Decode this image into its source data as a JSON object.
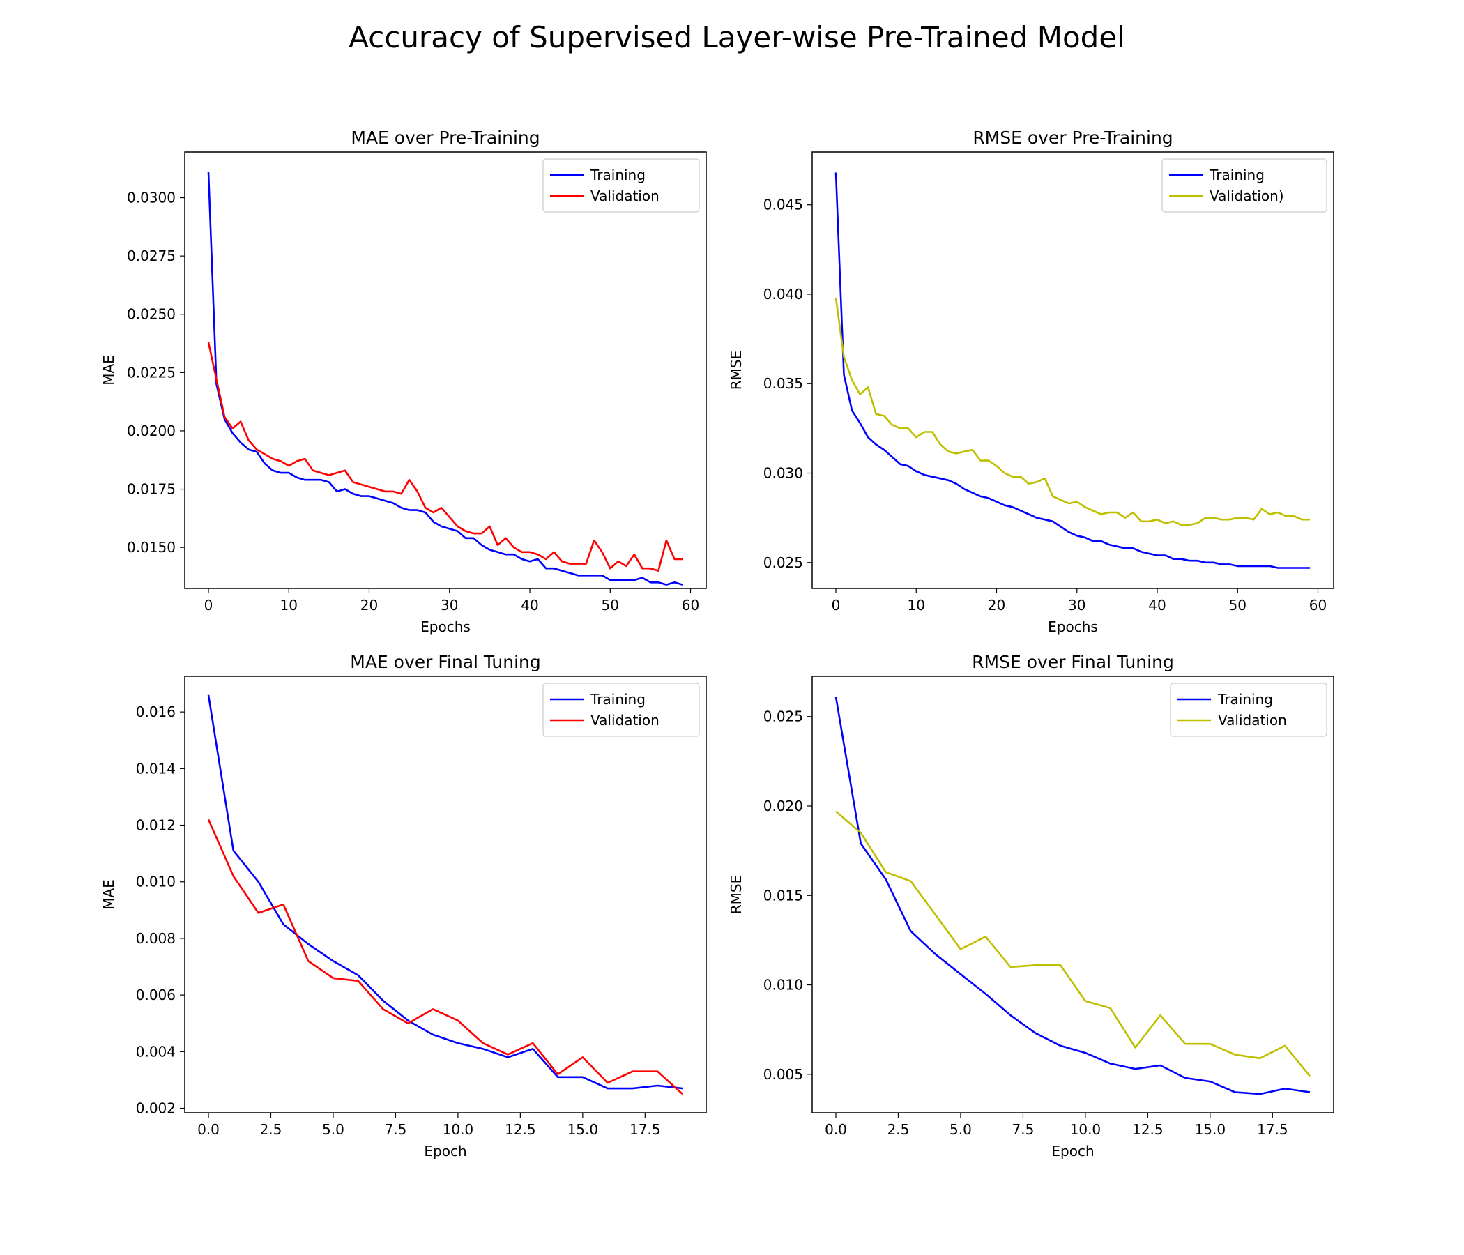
{
  "figure": {
    "title": "Accuracy of Supervised Layer-wise Pre-Trained Model"
  },
  "chart_data": [
    {
      "type": "line",
      "title": "MAE over Pre-Training",
      "xlabel": "Epochs",
      "ylabel": "MAE",
      "xlim": [
        -2.95,
        61.95
      ],
      "ylim": [
        0.01324,
        0.03196
      ],
      "xticks": [
        0,
        10,
        20,
        30,
        40,
        50,
        60
      ],
      "xtick_labels": [
        "0",
        "10",
        "20",
        "30",
        "40",
        "50",
        "60"
      ],
      "yticks": [
        0.015,
        0.0175,
        0.02,
        0.0225,
        0.025,
        0.0275,
        0.03
      ],
      "ytick_labels": [
        "0.0150",
        "0.0175",
        "0.0200",
        "0.0225",
        "0.0250",
        "0.0275",
        "0.0300"
      ],
      "legend_position": "top-right",
      "x": [
        0,
        1,
        2,
        3,
        4,
        5,
        6,
        7,
        8,
        9,
        10,
        11,
        12,
        13,
        14,
        15,
        16,
        17,
        18,
        19,
        20,
        21,
        22,
        23,
        24,
        25,
        26,
        27,
        28,
        29,
        30,
        31,
        32,
        33,
        34,
        35,
        36,
        37,
        38,
        39,
        40,
        41,
        42,
        43,
        44,
        45,
        46,
        47,
        48,
        49,
        50,
        51,
        52,
        53,
        54,
        55,
        56,
        57,
        58,
        59
      ],
      "series": [
        {
          "name": "Training",
          "color": "#0000ff",
          "values": [
            0.0311,
            0.022,
            0.0205,
            0.0199,
            0.0195,
            0.0192,
            0.0191,
            0.0186,
            0.0183,
            0.0182,
            0.0182,
            0.018,
            0.0179,
            0.0179,
            0.0179,
            0.0178,
            0.0174,
            0.0175,
            0.0173,
            0.0172,
            0.0172,
            0.0171,
            0.017,
            0.0169,
            0.0167,
            0.0166,
            0.0166,
            0.0165,
            0.0161,
            0.0159,
            0.0158,
            0.0157,
            0.0154,
            0.0154,
            0.0151,
            0.0149,
            0.0148,
            0.0147,
            0.0147,
            0.0145,
            0.0144,
            0.0145,
            0.0141,
            0.0141,
            0.014,
            0.0139,
            0.0138,
            0.0138,
            0.0138,
            0.0138,
            0.0136,
            0.0136,
            0.0136,
            0.0136,
            0.0137,
            0.0135,
            0.0135,
            0.0134,
            0.0135,
            0.0134
          ]
        },
        {
          "name": "Validation",
          "color": "#ff0000",
          "values": [
            0.0238,
            0.0222,
            0.0206,
            0.0201,
            0.0204,
            0.0196,
            0.0192,
            0.019,
            0.0188,
            0.0187,
            0.0185,
            0.0187,
            0.0188,
            0.0183,
            0.0182,
            0.0181,
            0.0182,
            0.0183,
            0.0178,
            0.0177,
            0.0176,
            0.0175,
            0.0174,
            0.0174,
            0.0173,
            0.0179,
            0.0174,
            0.0167,
            0.0165,
            0.0167,
            0.0163,
            0.0159,
            0.0157,
            0.0156,
            0.0156,
            0.0159,
            0.0151,
            0.0154,
            0.015,
            0.0148,
            0.0148,
            0.0147,
            0.0145,
            0.0148,
            0.0144,
            0.0143,
            0.0143,
            0.0143,
            0.0153,
            0.0148,
            0.0141,
            0.0144,
            0.0142,
            0.0147,
            0.0141,
            0.0141,
            0.014,
            0.0153,
            0.0145,
            0.0145
          ]
        }
      ]
    },
    {
      "type": "line",
      "title": "RMSE over Pre-Training",
      "xlabel": "Epochs",
      "ylabel": "RMSE",
      "xlim": [
        -2.95,
        61.95
      ],
      "ylim": [
        0.02355,
        0.04795
      ],
      "xticks": [
        0,
        10,
        20,
        30,
        40,
        50,
        60
      ],
      "xtick_labels": [
        "0",
        "10",
        "20",
        "30",
        "40",
        "50",
        "60"
      ],
      "yticks": [
        0.025,
        0.03,
        0.035,
        0.04,
        0.045
      ],
      "ytick_labels": [
        "0.025",
        "0.030",
        "0.035",
        "0.040",
        "0.045"
      ],
      "legend_position": "top-right",
      "x": [
        0,
        1,
        2,
        3,
        4,
        5,
        6,
        7,
        8,
        9,
        10,
        11,
        12,
        13,
        14,
        15,
        16,
        17,
        18,
        19,
        20,
        21,
        22,
        23,
        24,
        25,
        26,
        27,
        28,
        29,
        30,
        31,
        32,
        33,
        34,
        35,
        36,
        37,
        38,
        39,
        40,
        41,
        42,
        43,
        44,
        45,
        46,
        47,
        48,
        49,
        50,
        51,
        52,
        53,
        54,
        55,
        56,
        57,
        58,
        59
      ],
      "series": [
        {
          "name": "Training",
          "color": "#0000ff",
          "values": [
            0.0468,
            0.0355,
            0.0335,
            0.0328,
            0.032,
            0.0316,
            0.0313,
            0.0309,
            0.0305,
            0.0304,
            0.0301,
            0.0299,
            0.0298,
            0.0297,
            0.0296,
            0.0294,
            0.0291,
            0.0289,
            0.0287,
            0.0286,
            0.0284,
            0.0282,
            0.0281,
            0.0279,
            0.0277,
            0.0275,
            0.0274,
            0.0273,
            0.027,
            0.0267,
            0.0265,
            0.0264,
            0.0262,
            0.0262,
            0.026,
            0.0259,
            0.0258,
            0.0258,
            0.0256,
            0.0255,
            0.0254,
            0.0254,
            0.0252,
            0.0252,
            0.0251,
            0.0251,
            0.025,
            0.025,
            0.0249,
            0.0249,
            0.0248,
            0.0248,
            0.0248,
            0.0248,
            0.0248,
            0.0247,
            0.0247,
            0.0247,
            0.0247,
            0.0247
          ]
        },
        {
          "name": "Validation)",
          "color": "#bfbf00",
          "values": [
            0.0398,
            0.0365,
            0.0352,
            0.0344,
            0.0348,
            0.0333,
            0.0332,
            0.0327,
            0.0325,
            0.0325,
            0.032,
            0.0323,
            0.0323,
            0.0316,
            0.0312,
            0.0311,
            0.0312,
            0.0313,
            0.0307,
            0.0307,
            0.0304,
            0.03,
            0.0298,
            0.0298,
            0.0294,
            0.0295,
            0.0297,
            0.0287,
            0.0285,
            0.0283,
            0.0284,
            0.0281,
            0.0279,
            0.0277,
            0.0278,
            0.0278,
            0.0275,
            0.0278,
            0.0273,
            0.0273,
            0.0274,
            0.0272,
            0.0273,
            0.0271,
            0.0271,
            0.0272,
            0.0275,
            0.0275,
            0.0274,
            0.0274,
            0.0275,
            0.0275,
            0.0274,
            0.028,
            0.0277,
            0.0278,
            0.0276,
            0.0276,
            0.0274,
            0.0274
          ]
        }
      ]
    },
    {
      "type": "line",
      "title": "MAE over Final Tuning",
      "xlabel": "Epoch",
      "ylabel": "MAE",
      "xlim": [
        -0.95,
        19.95
      ],
      "ylim": [
        0.00184,
        0.01726
      ],
      "xticks": [
        0,
        2.5,
        5,
        7.5,
        10,
        12.5,
        15,
        17.5
      ],
      "xtick_labels": [
        "0.0",
        "2.5",
        "5.0",
        "7.5",
        "10.0",
        "12.5",
        "15.0",
        "17.5"
      ],
      "yticks": [
        0.002,
        0.004,
        0.006,
        0.008,
        0.01,
        0.012,
        0.014,
        0.016
      ],
      "ytick_labels": [
        "0.002",
        "0.004",
        "0.006",
        "0.008",
        "0.010",
        "0.012",
        "0.014",
        "0.016"
      ],
      "legend_position": "top-right",
      "x": [
        0,
        1,
        2,
        3,
        4,
        5,
        6,
        7,
        8,
        9,
        10,
        11,
        12,
        13,
        14,
        15,
        16,
        17,
        18,
        19
      ],
      "series": [
        {
          "name": "Training",
          "color": "#0000ff",
          "values": [
            0.0166,
            0.0111,
            0.01,
            0.0085,
            0.0078,
            0.0072,
            0.0067,
            0.0058,
            0.0051,
            0.0046,
            0.0043,
            0.0041,
            0.0038,
            0.0041,
            0.0031,
            0.0031,
            0.0027,
            0.0027,
            0.0028,
            0.0027
          ]
        },
        {
          "name": "Validation",
          "color": "#ff0000",
          "values": [
            0.0122,
            0.0102,
            0.0089,
            0.0092,
            0.0072,
            0.0066,
            0.0065,
            0.0055,
            0.005,
            0.0055,
            0.0051,
            0.0043,
            0.0039,
            0.0043,
            0.0032,
            0.0038,
            0.0029,
            0.0033,
            0.0033,
            0.0025
          ]
        }
      ]
    },
    {
      "type": "line",
      "title": "RMSE over Final Tuning",
      "xlabel": "Epoch",
      "ylabel": "RMSE",
      "xlim": [
        -0.95,
        19.95
      ],
      "ylim": [
        0.00285,
        0.02725
      ],
      "xticks": [
        0,
        2.5,
        5,
        7.5,
        10,
        12.5,
        15,
        17.5
      ],
      "xtick_labels": [
        "0.0",
        "2.5",
        "5.0",
        "7.5",
        "10.0",
        "12.5",
        "15.0",
        "17.5"
      ],
      "yticks": [
        0.005,
        0.01,
        0.015,
        0.02,
        0.025
      ],
      "ytick_labels": [
        "0.005",
        "0.010",
        "0.015",
        "0.020",
        "0.025"
      ],
      "legend_position": "top-right",
      "x": [
        0,
        1,
        2,
        3,
        4,
        5,
        6,
        7,
        8,
        9,
        10,
        11,
        12,
        13,
        14,
        15,
        16,
        17,
        18,
        19
      ],
      "series": [
        {
          "name": "Training",
          "color": "#0000ff",
          "values": [
            0.0261,
            0.0179,
            0.0159,
            0.013,
            0.0117,
            0.0106,
            0.0095,
            0.0083,
            0.0073,
            0.0066,
            0.0062,
            0.0056,
            0.0053,
            0.0055,
            0.0048,
            0.0046,
            0.004,
            0.0039,
            0.0042,
            0.004
          ]
        },
        {
          "name": "Validation",
          "color": "#bfbf00",
          "values": [
            0.0197,
            0.0185,
            0.0163,
            0.0158,
            0.0139,
            0.012,
            0.0127,
            0.011,
            0.0111,
            0.0111,
            0.0091,
            0.0087,
            0.0065,
            0.0083,
            0.0067,
            0.0067,
            0.0061,
            0.0059,
            0.0066,
            0.0049
          ]
        }
      ]
    }
  ]
}
